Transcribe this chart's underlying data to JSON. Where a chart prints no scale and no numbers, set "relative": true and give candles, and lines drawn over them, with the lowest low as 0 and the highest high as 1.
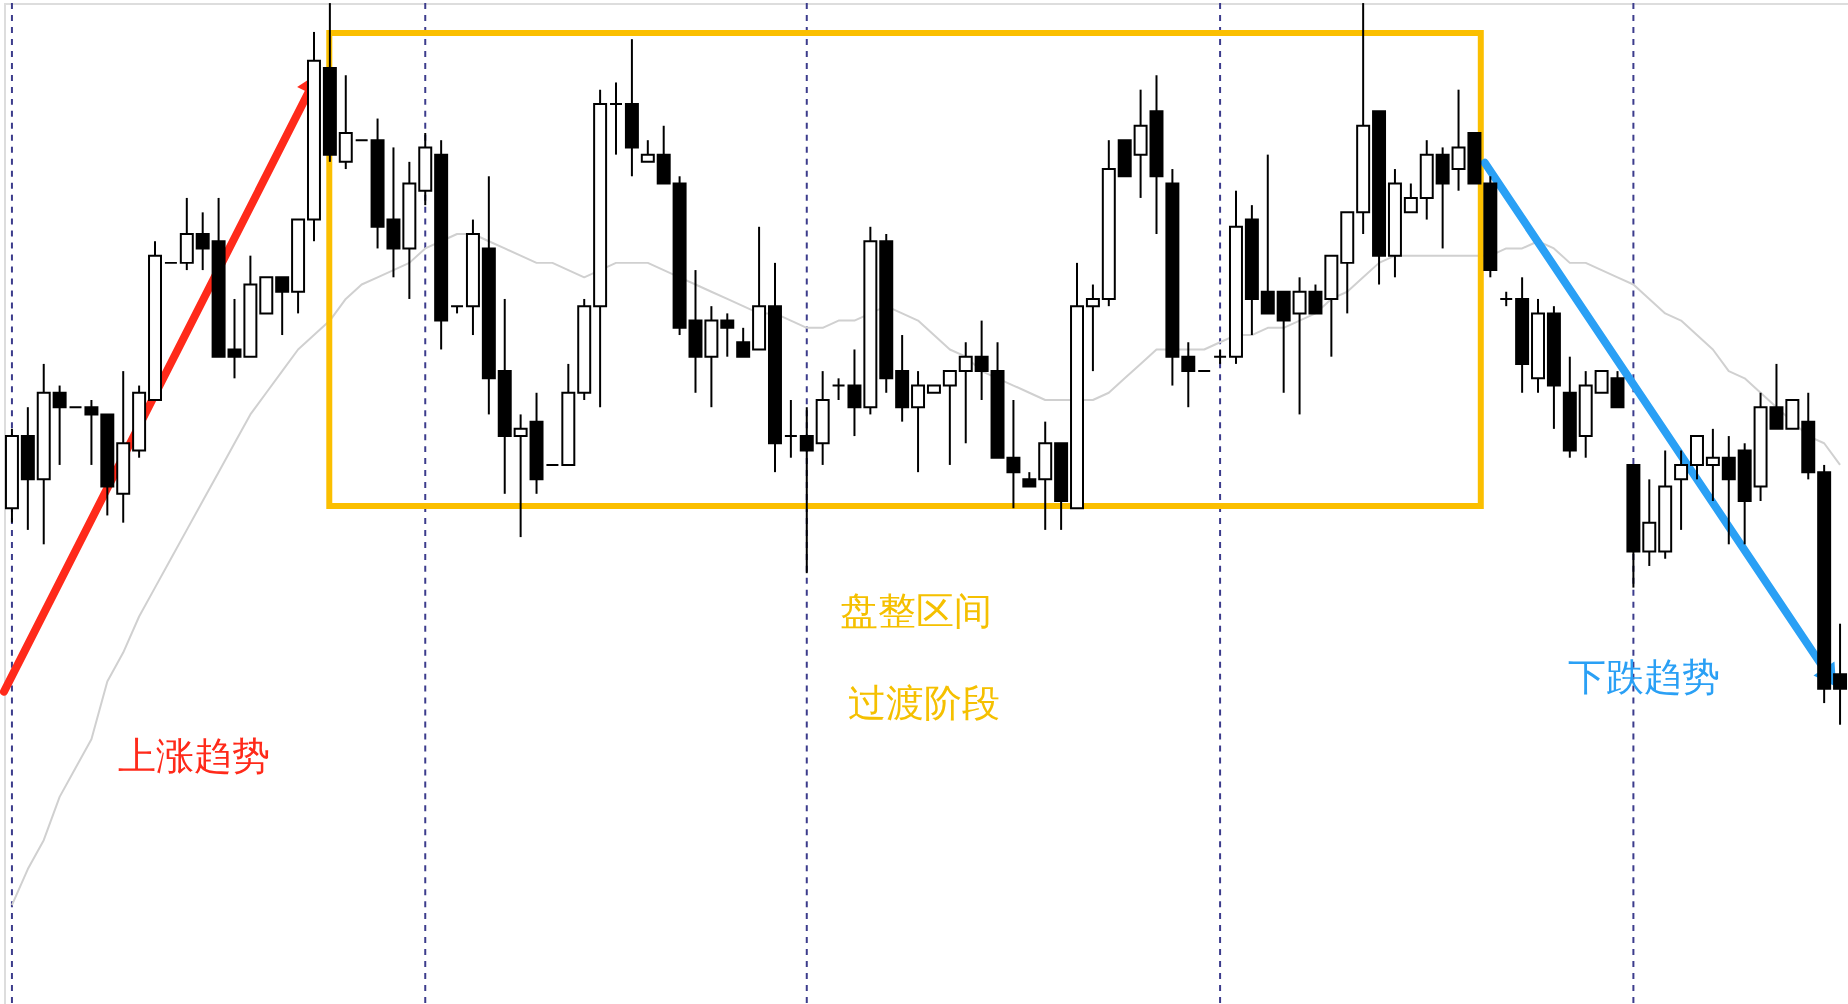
{
  "chart_data": {
    "type": "candlestick",
    "relative": true,
    "grid": "x",
    "color": "#000000",
    "categories": [
      null,
      null,
      null,
      null,
      null,
      null,
      null,
      null,
      null,
      null,
      null,
      null,
      null,
      null,
      null,
      null,
      null,
      null,
      null,
      null,
      null,
      null,
      null,
      null,
      null,
      null,
      null,
      null,
      null,
      null,
      null,
      null,
      null,
      null,
      null,
      null,
      null,
      null,
      null,
      null,
      null,
      null,
      null,
      null,
      null,
      null,
      null,
      null,
      null,
      null,
      null,
      null,
      null,
      null,
      null,
      null,
      null,
      null,
      null,
      null,
      null,
      null,
      null,
      null,
      null,
      null,
      null,
      null,
      null,
      null,
      null,
      null,
      null,
      null,
      null,
      null,
      null,
      null,
      null,
      null,
      null,
      null,
      null,
      null,
      null,
      null,
      null,
      null,
      null,
      null,
      null,
      null,
      null,
      null,
      null,
      null,
      null,
      null,
      null,
      null,
      null,
      null,
      null,
      null,
      null,
      null,
      null,
      null,
      null,
      null,
      null,
      null,
      null,
      null,
      null,
      null
    ],
    "ohlc": [
      [
        0.3,
        0.41,
        0.28,
        0.4
      ],
      [
        0.4,
        0.44,
        0.27,
        0.34
      ],
      [
        0.34,
        0.5,
        0.25,
        0.46
      ],
      [
        0.46,
        0.47,
        0.36,
        0.44
      ],
      [
        0.44,
        0.44,
        0.44,
        0.44
      ],
      [
        0.44,
        0.45,
        0.36,
        0.43
      ],
      [
        0.43,
        0.43,
        0.29,
        0.33
      ],
      [
        0.32,
        0.49,
        0.28,
        0.39
      ],
      [
        0.38,
        0.47,
        0.37,
        0.46
      ],
      [
        0.45,
        0.67,
        0.45,
        0.65
      ],
      [
        0.64,
        0.64,
        0.64,
        0.64
      ],
      [
        0.64,
        0.73,
        0.63,
        0.68
      ],
      [
        0.68,
        0.71,
        0.63,
        0.66
      ],
      [
        0.67,
        0.73,
        0.51,
        0.51
      ],
      [
        0.52,
        0.59,
        0.48,
        0.51
      ],
      [
        0.51,
        0.65,
        0.51,
        0.61
      ],
      [
        0.57,
        0.62,
        0.57,
        0.62
      ],
      [
        0.62,
        0.62,
        0.54,
        0.6
      ],
      [
        0.6,
        0.7,
        0.57,
        0.7
      ],
      [
        0.7,
        0.96,
        0.67,
        0.92
      ],
      [
        0.91,
        1.0,
        0.78,
        0.79
      ],
      [
        0.78,
        0.9,
        0.77,
        0.82
      ],
      [
        0.81,
        0.81,
        0.81,
        0.81
      ],
      [
        0.81,
        0.84,
        0.66,
        0.69
      ],
      [
        0.7,
        0.8,
        0.62,
        0.66
      ],
      [
        0.66,
        0.78,
        0.59,
        0.75
      ],
      [
        0.74,
        0.82,
        0.72,
        0.8
      ],
      [
        0.79,
        0.81,
        0.52,
        0.56
      ],
      [
        0.58,
        0.58,
        0.57,
        0.58
      ],
      [
        0.58,
        0.7,
        0.54,
        0.68
      ],
      [
        0.66,
        0.76,
        0.43,
        0.48
      ],
      [
        0.49,
        0.59,
        0.32,
        0.4
      ],
      [
        0.4,
        0.43,
        0.26,
        0.41
      ],
      [
        0.42,
        0.46,
        0.32,
        0.34
      ],
      [
        0.36,
        0.36,
        0.36,
        0.36
      ],
      [
        0.36,
        0.5,
        0.36,
        0.46
      ],
      [
        0.46,
        0.59,
        0.45,
        0.58
      ],
      [
        0.58,
        0.88,
        0.44,
        0.86
      ],
      [
        0.86,
        0.89,
        0.79,
        0.86
      ],
      [
        0.86,
        0.95,
        0.76,
        0.8
      ],
      [
        0.78,
        0.81,
        0.78,
        0.79
      ],
      [
        0.79,
        0.83,
        0.75,
        0.75
      ],
      [
        0.75,
        0.76,
        0.54,
        0.55
      ],
      [
        0.56,
        0.63,
        0.46,
        0.51
      ],
      [
        0.51,
        0.58,
        0.44,
        0.56
      ],
      [
        0.56,
        0.57,
        0.51,
        0.55
      ],
      [
        0.53,
        0.55,
        0.51,
        0.51
      ],
      [
        0.52,
        0.69,
        0.52,
        0.58
      ],
      [
        0.58,
        0.64,
        0.35,
        0.39
      ],
      [
        0.4,
        0.45,
        0.37,
        0.4
      ],
      [
        0.4,
        0.44,
        0.21,
        0.38
      ],
      [
        0.39,
        0.49,
        0.36,
        0.45
      ],
      [
        0.47,
        0.48,
        0.45,
        0.47
      ],
      [
        0.47,
        0.52,
        0.4,
        0.44
      ],
      [
        0.44,
        0.69,
        0.43,
        0.67
      ],
      [
        0.67,
        0.68,
        0.46,
        0.48
      ],
      [
        0.49,
        0.54,
        0.42,
        0.44
      ],
      [
        0.44,
        0.49,
        0.35,
        0.47
      ],
      [
        0.46,
        0.47,
        0.46,
        0.47
      ],
      [
        0.47,
        0.49,
        0.36,
        0.49
      ],
      [
        0.49,
        0.53,
        0.39,
        0.51
      ],
      [
        0.51,
        0.56,
        0.45,
        0.49
      ],
      [
        0.49,
        0.53,
        0.37,
        0.37
      ],
      [
        0.37,
        0.45,
        0.3,
        0.35
      ],
      [
        0.34,
        0.35,
        0.33,
        0.33
      ],
      [
        0.34,
        0.42,
        0.27,
        0.39
      ],
      [
        0.39,
        0.39,
        0.27,
        0.31
      ],
      [
        0.3,
        0.64,
        0.3,
        0.58
      ],
      [
        0.58,
        0.61,
        0.49,
        0.59
      ],
      [
        0.59,
        0.81,
        0.58,
        0.77
      ],
      [
        0.81,
        0.81,
        0.76,
        0.76
      ],
      [
        0.79,
        0.88,
        0.73,
        0.83
      ],
      [
        0.85,
        0.9,
        0.68,
        0.76
      ],
      [
        0.75,
        0.77,
        0.47,
        0.51
      ],
      [
        0.51,
        0.53,
        0.44,
        0.49
      ],
      [
        0.49,
        0.49,
        0.49,
        0.49
      ],
      [
        0.51,
        0.52,
        0.5,
        0.51
      ],
      [
        0.51,
        0.74,
        0.5,
        0.69
      ],
      [
        0.7,
        0.72,
        0.54,
        0.59
      ],
      [
        0.6,
        0.79,
        0.57,
        0.57
      ],
      [
        0.6,
        0.6,
        0.46,
        0.56
      ],
      [
        0.57,
        0.62,
        0.43,
        0.6
      ],
      [
        0.6,
        0.61,
        0.57,
        0.57
      ],
      [
        0.59,
        0.65,
        0.51,
        0.65
      ],
      [
        0.64,
        0.71,
        0.57,
        0.71
      ],
      [
        0.71,
        1.0,
        0.68,
        0.83
      ],
      [
        0.85,
        0.85,
        0.61,
        0.65
      ],
      [
        0.65,
        0.77,
        0.62,
        0.75
      ],
      [
        0.71,
        0.75,
        0.71,
        0.73
      ],
      [
        0.73,
        0.81,
        0.7,
        0.79
      ],
      [
        0.79,
        0.8,
        0.66,
        0.75
      ],
      [
        0.77,
        0.88,
        0.74,
        0.8
      ],
      [
        0.82,
        0.82,
        0.75,
        0.75
      ],
      [
        0.75,
        0.76,
        0.62,
        0.63
      ],
      [
        0.59,
        0.6,
        0.58,
        0.59
      ],
      [
        0.59,
        0.62,
        0.46,
        0.5
      ],
      [
        0.48,
        0.59,
        0.46,
        0.57
      ],
      [
        0.57,
        0.58,
        0.41,
        0.47
      ],
      [
        0.46,
        0.51,
        0.37,
        0.38
      ],
      [
        0.4,
        0.49,
        0.37,
        0.47
      ],
      [
        0.46,
        0.49,
        0.46,
        0.49
      ],
      [
        0.48,
        0.49,
        0.44,
        0.44
      ],
      [
        0.36,
        0.36,
        0.19,
        0.24
      ],
      [
        0.24,
        0.34,
        0.22,
        0.28
      ],
      [
        0.24,
        0.38,
        0.23,
        0.33
      ],
      [
        0.34,
        0.38,
        0.27,
        0.36
      ],
      [
        0.36,
        0.4,
        0.34,
        0.4
      ],
      [
        0.36,
        0.41,
        0.31,
        0.37
      ],
      [
        0.37,
        0.4,
        0.25,
        0.34
      ],
      [
        0.38,
        0.39,
        0.25,
        0.31
      ],
      [
        0.33,
        0.46,
        0.31,
        0.44
      ],
      [
        0.44,
        0.5,
        0.41,
        0.41
      ],
      [
        0.41,
        0.45,
        0.41,
        0.45
      ],
      [
        0.42,
        0.46,
        0.34,
        0.35
      ],
      [
        0.35,
        0.36,
        0.03,
        0.05
      ],
      [
        0.07,
        0.14,
        0.0,
        0.05
      ]
    ],
    "series": [
      {
        "type": "line",
        "color": "#d0d0d0",
        "values": [
          -0.25,
          -0.2,
          -0.16,
          -0.1,
          -0.06,
          -0.02,
          0.06,
          0.1,
          0.15,
          0.19,
          0.23,
          0.27,
          0.31,
          0.35,
          0.39,
          0.43,
          0.46,
          0.49,
          0.52,
          0.54,
          0.56,
          0.59,
          0.61,
          0.62,
          0.63,
          0.64,
          0.66,
          0.67,
          0.68,
          0.68,
          0.67,
          0.66,
          0.65,
          0.64,
          0.64,
          0.63,
          0.62,
          0.63,
          0.64,
          0.64,
          0.64,
          0.63,
          0.62,
          0.61,
          0.6,
          0.59,
          0.58,
          0.57,
          0.57,
          0.56,
          0.55,
          0.55,
          0.56,
          0.56,
          0.57,
          0.58,
          0.57,
          0.56,
          0.54,
          0.52,
          0.51,
          0.49,
          0.48,
          0.47,
          0.46,
          0.45,
          0.45,
          0.45,
          0.45,
          0.46,
          0.48,
          0.5,
          0.52,
          0.52,
          0.52,
          0.52,
          0.53,
          0.54,
          0.54,
          0.55,
          0.55,
          0.56,
          0.57,
          0.59,
          0.6,
          0.62,
          0.64,
          0.65,
          0.65,
          0.65,
          0.65,
          0.65,
          0.65,
          0.65,
          0.66,
          0.66,
          0.67,
          0.66,
          0.64,
          0.64,
          0.63,
          0.62,
          0.61,
          0.59,
          0.57,
          0.56,
          0.54,
          0.52,
          0.49,
          0.48,
          0.46,
          0.44,
          0.42,
          0.4,
          0.39,
          0.36
        ]
      }
    ],
    "annotations": [
      "盘整区间",
      "过渡阶段",
      "上涨趋势",
      "下跌趋势"
    ]
  }
}
